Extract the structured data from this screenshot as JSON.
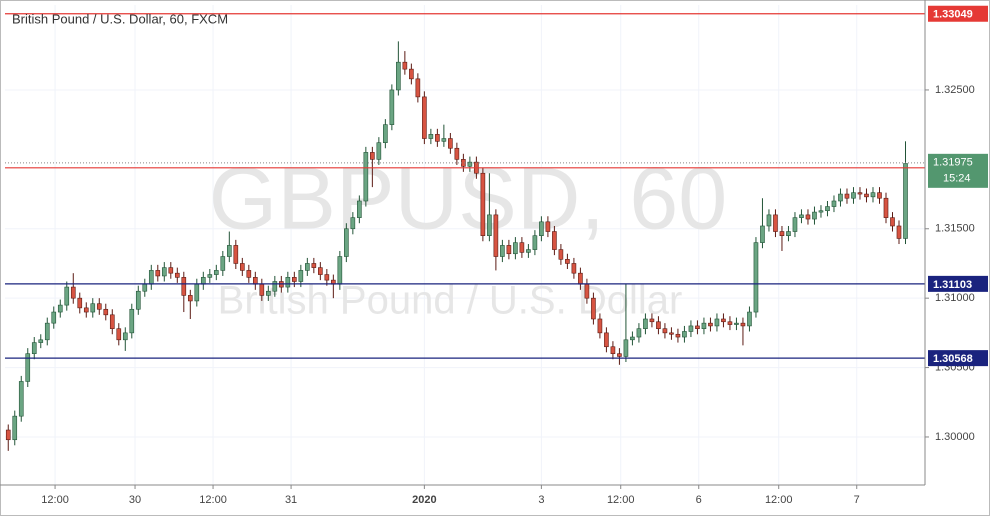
{
  "chart_data": {
    "type": "candlestick",
    "title": "British Pound / U.S. Dollar, 60, FXCM",
    "watermark": "GBPUSD, 60",
    "watermark_subtitle": "British Pound / U.S. Dollar",
    "open": [
      1.3005,
      1.2998,
      1.3015,
      1.304,
      1.306,
      1.3068,
      1.307,
      1.3082,
      1.309,
      1.3095,
      1.3108,
      1.31,
      1.3093,
      1.309,
      1.3096,
      1.3092,
      1.3088,
      1.3078,
      1.307,
      1.3075,
      1.3092,
      1.3105,
      1.311,
      1.312,
      1.3116,
      1.3122,
      1.3118,
      1.3115,
      1.3102,
      1.3098,
      1.311,
      1.3115,
      1.3117,
      1.312,
      1.313,
      1.3138,
      1.3125,
      1.312,
      1.3115,
      1.311,
      1.3102,
      1.3105,
      1.3112,
      1.3108,
      1.3115,
      1.3112,
      1.312,
      1.3125,
      1.3122,
      1.3117,
      1.3113,
      1.311,
      1.313,
      1.315,
      1.3158,
      1.317,
      1.3205,
      1.32,
      1.3212,
      1.3225,
      1.325,
      1.327,
      1.3265,
      1.3258,
      1.3245,
      1.3215,
      1.3218,
      1.3213,
      1.3215,
      1.3208,
      1.32,
      1.3195,
      1.3198,
      1.319,
      1.3145,
      1.316,
      1.313,
      1.3138,
      1.3132,
      1.314,
      1.3133,
      1.3135,
      1.3145,
      1.3155,
      1.3148,
      1.3135,
      1.3128,
      1.3125,
      1.3118,
      1.311,
      1.31,
      1.3085,
      1.3075,
      1.3065,
      1.306,
      1.3058,
      1.307,
      1.3072,
      1.3078,
      1.3085,
      1.3083,
      1.3078,
      1.3075,
      1.3074,
      1.3072,
      1.3076,
      1.308,
      1.3078,
      1.3082,
      1.308,
      1.3085,
      1.3083,
      1.3081,
      1.3082,
      1.308,
      1.309,
      1.314,
      1.3152,
      1.316,
      1.3148,
      1.3145,
      1.3148,
      1.3158,
      1.316,
      1.3157,
      1.3162,
      1.3163,
      1.3166,
      1.317,
      1.3175,
      1.3172,
      1.3176,
      1.3175,
      1.3173,
      1.3176,
      1.3172,
      1.3158,
      1.3152,
      1.3143
    ],
    "high": [
      1.3009,
      1.3019,
      1.3044,
      1.3064,
      1.3072,
      1.3074,
      1.3086,
      1.3094,
      1.3099,
      1.3112,
      1.3118,
      1.3104,
      1.3097,
      1.31,
      1.31,
      1.3096,
      1.3092,
      1.3082,
      1.3079,
      1.3096,
      1.3109,
      1.3114,
      1.3124,
      1.3124,
      1.3126,
      1.3126,
      1.3122,
      1.3119,
      1.3106,
      1.3114,
      1.3119,
      1.3121,
      1.3124,
      1.3134,
      1.3148,
      1.3142,
      1.3129,
      1.3124,
      1.3119,
      1.3114,
      1.3109,
      1.3116,
      1.3116,
      1.3119,
      1.3119,
      1.3124,
      1.3129,
      1.3129,
      1.3126,
      1.3121,
      1.3117,
      1.3134,
      1.3154,
      1.3162,
      1.3174,
      1.3209,
      1.3209,
      1.3216,
      1.3229,
      1.3254,
      1.3285,
      1.3278,
      1.3269,
      1.3262,
      1.3249,
      1.3222,
      1.3222,
      1.3225,
      1.3219,
      1.3212,
      1.3204,
      1.3202,
      1.3202,
      1.3194,
      1.319,
      1.3164,
      1.3142,
      1.3142,
      1.3144,
      1.3144,
      1.3139,
      1.3149,
      1.3159,
      1.3159,
      1.3152,
      1.3139,
      1.3132,
      1.3129,
      1.3122,
      1.3114,
      1.3104,
      1.3089,
      1.3079,
      1.3069,
      1.3064,
      1.311,
      1.3076,
      1.3082,
      1.3089,
      1.3089,
      1.3087,
      1.3082,
      1.3079,
      1.3078,
      1.308,
      1.3084,
      1.3084,
      1.3086,
      1.3086,
      1.3089,
      1.3089,
      1.3087,
      1.3086,
      1.3086,
      1.3094,
      1.3144,
      1.3172,
      1.3164,
      1.3164,
      1.3152,
      1.3152,
      1.3162,
      1.3164,
      1.3164,
      1.3166,
      1.3167,
      1.317,
      1.3174,
      1.3179,
      1.3179,
      1.318,
      1.318,
      1.3179,
      1.318,
      1.318,
      1.3176,
      1.3162,
      1.3156,
      1.3213
    ],
    "low": [
      1.299,
      1.2994,
      1.3011,
      1.3036,
      1.3056,
      1.3064,
      1.3066,
      1.3078,
      1.3086,
      1.3091,
      1.3096,
      1.3089,
      1.3086,
      1.3086,
      1.3088,
      1.3084,
      1.3074,
      1.3066,
      1.3062,
      1.3071,
      1.3088,
      1.3101,
      1.3106,
      1.3112,
      1.3112,
      1.3114,
      1.3111,
      1.309,
      1.3085,
      1.3094,
      1.3106,
      1.3111,
      1.3113,
      1.3116,
      1.3126,
      1.3121,
      1.3116,
      1.3111,
      1.3106,
      1.3098,
      1.3098,
      1.3101,
      1.3104,
      1.3104,
      1.3108,
      1.3108,
      1.3116,
      1.3118,
      1.3113,
      1.3109,
      1.31,
      1.3106,
      1.3126,
      1.3146,
      1.3154,
      1.3166,
      1.318,
      1.3196,
      1.3208,
      1.3221,
      1.3246,
      1.3261,
      1.3254,
      1.3241,
      1.3211,
      1.3211,
      1.3209,
      1.3209,
      1.3204,
      1.3196,
      1.3191,
      1.3191,
      1.3186,
      1.3141,
      1.3141,
      1.312,
      1.3126,
      1.3128,
      1.3128,
      1.3129,
      1.3129,
      1.3131,
      1.3141,
      1.3144,
      1.3131,
      1.3124,
      1.3121,
      1.3114,
      1.3106,
      1.3096,
      1.3081,
      1.3071,
      1.3061,
      1.3056,
      1.3052,
      1.3054,
      1.3066,
      1.3068,
      1.3074,
      1.3079,
      1.3074,
      1.3071,
      1.307,
      1.3068,
      1.3068,
      1.3072,
      1.3074,
      1.3074,
      1.3076,
      1.3076,
      1.3079,
      1.3077,
      1.3077,
      1.3066,
      1.3076,
      1.3086,
      1.3136,
      1.3148,
      1.3144,
      1.3134,
      1.3141,
      1.3144,
      1.3154,
      1.3153,
      1.3153,
      1.3158,
      1.3159,
      1.3162,
      1.3166,
      1.3168,
      1.3168,
      1.3171,
      1.3169,
      1.3169,
      1.3168,
      1.3154,
      1.3148,
      1.3139,
      1.3139
    ],
    "close": [
      1.2998,
      1.3015,
      1.304,
      1.306,
      1.3068,
      1.307,
      1.3082,
      1.309,
      1.3095,
      1.3108,
      1.31,
      1.3093,
      1.309,
      1.3096,
      1.3092,
      1.3088,
      1.3078,
      1.307,
      1.3075,
      1.3092,
      1.3105,
      1.311,
      1.312,
      1.3116,
      1.3122,
      1.3118,
      1.3115,
      1.3102,
      1.3098,
      1.311,
      1.3115,
      1.3117,
      1.312,
      1.313,
      1.3138,
      1.3125,
      1.312,
      1.3115,
      1.311,
      1.3102,
      1.3105,
      1.3112,
      1.3108,
      1.3115,
      1.3112,
      1.312,
      1.3125,
      1.3122,
      1.3117,
      1.3113,
      1.311,
      1.313,
      1.315,
      1.3158,
      1.317,
      1.3205,
      1.32,
      1.3212,
      1.3225,
      1.325,
      1.327,
      1.3265,
      1.3258,
      1.3245,
      1.3215,
      1.3218,
      1.3213,
      1.3215,
      1.3208,
      1.32,
      1.3195,
      1.3198,
      1.319,
      1.3145,
      1.316,
      1.313,
      1.3138,
      1.3132,
      1.314,
      1.3133,
      1.3135,
      1.3145,
      1.3155,
      1.3148,
      1.3135,
      1.3128,
      1.3125,
      1.3118,
      1.311,
      1.31,
      1.3085,
      1.3075,
      1.3065,
      1.306,
      1.3058,
      1.307,
      1.3072,
      1.3078,
      1.3085,
      1.3083,
      1.3078,
      1.3075,
      1.3074,
      1.3072,
      1.3076,
      1.308,
      1.3078,
      1.3082,
      1.308,
      1.3085,
      1.3083,
      1.3081,
      1.3082,
      1.308,
      1.309,
      1.314,
      1.3152,
      1.316,
      1.3148,
      1.3145,
      1.3148,
      1.3158,
      1.316,
      1.3157,
      1.3162,
      1.3163,
      1.3166,
      1.317,
      1.3175,
      1.3172,
      1.3176,
      1.3175,
      1.3173,
      1.3176,
      1.3172,
      1.3158,
      1.3152,
      1.3143,
      1.3197
    ],
    "up_color": "#6ba583",
    "down_color": "#d75442",
    "xlim": [
      -0.5,
      141
    ],
    "xticks": [
      {
        "value": 7.2,
        "label": "12:00"
      },
      {
        "value": 19.5,
        "label": "30"
      },
      {
        "value": 31.5,
        "label": "12:00"
      },
      {
        "value": 43.5,
        "label": "31"
      },
      {
        "value": 64,
        "label": "2020"
      },
      {
        "value": 82,
        "label": "3"
      },
      {
        "value": 94.2,
        "label": "12:00"
      },
      {
        "value": 106.2,
        "label": "6"
      },
      {
        "value": 118.5,
        "label": "12:00"
      },
      {
        "value": 130.5,
        "label": "7"
      }
    ],
    "ylim": [
      1.29654,
      1.33112
    ],
    "yticks": [
      {
        "value": 1.3,
        "label": "1.30000"
      },
      {
        "value": 1.305,
        "label": "1.30500"
      },
      {
        "value": 1.31,
        "label": "1.31000"
      },
      {
        "value": 1.315,
        "label": "1.31500"
      },
      {
        "value": 1.325,
        "label": "1.32500"
      }
    ],
    "grid": true,
    "levels": [
      {
        "value": 1.33049,
        "color": "#e53935"
      },
      {
        "value": 1.31939,
        "color": "#e53935"
      },
      {
        "value": 1.31103,
        "color": "#1a237e"
      },
      {
        "value": 1.30568,
        "color": "#1a237e"
      }
    ],
    "last_price": 1.31975,
    "last_color": "#53976f",
    "countdown": "15:24"
  }
}
